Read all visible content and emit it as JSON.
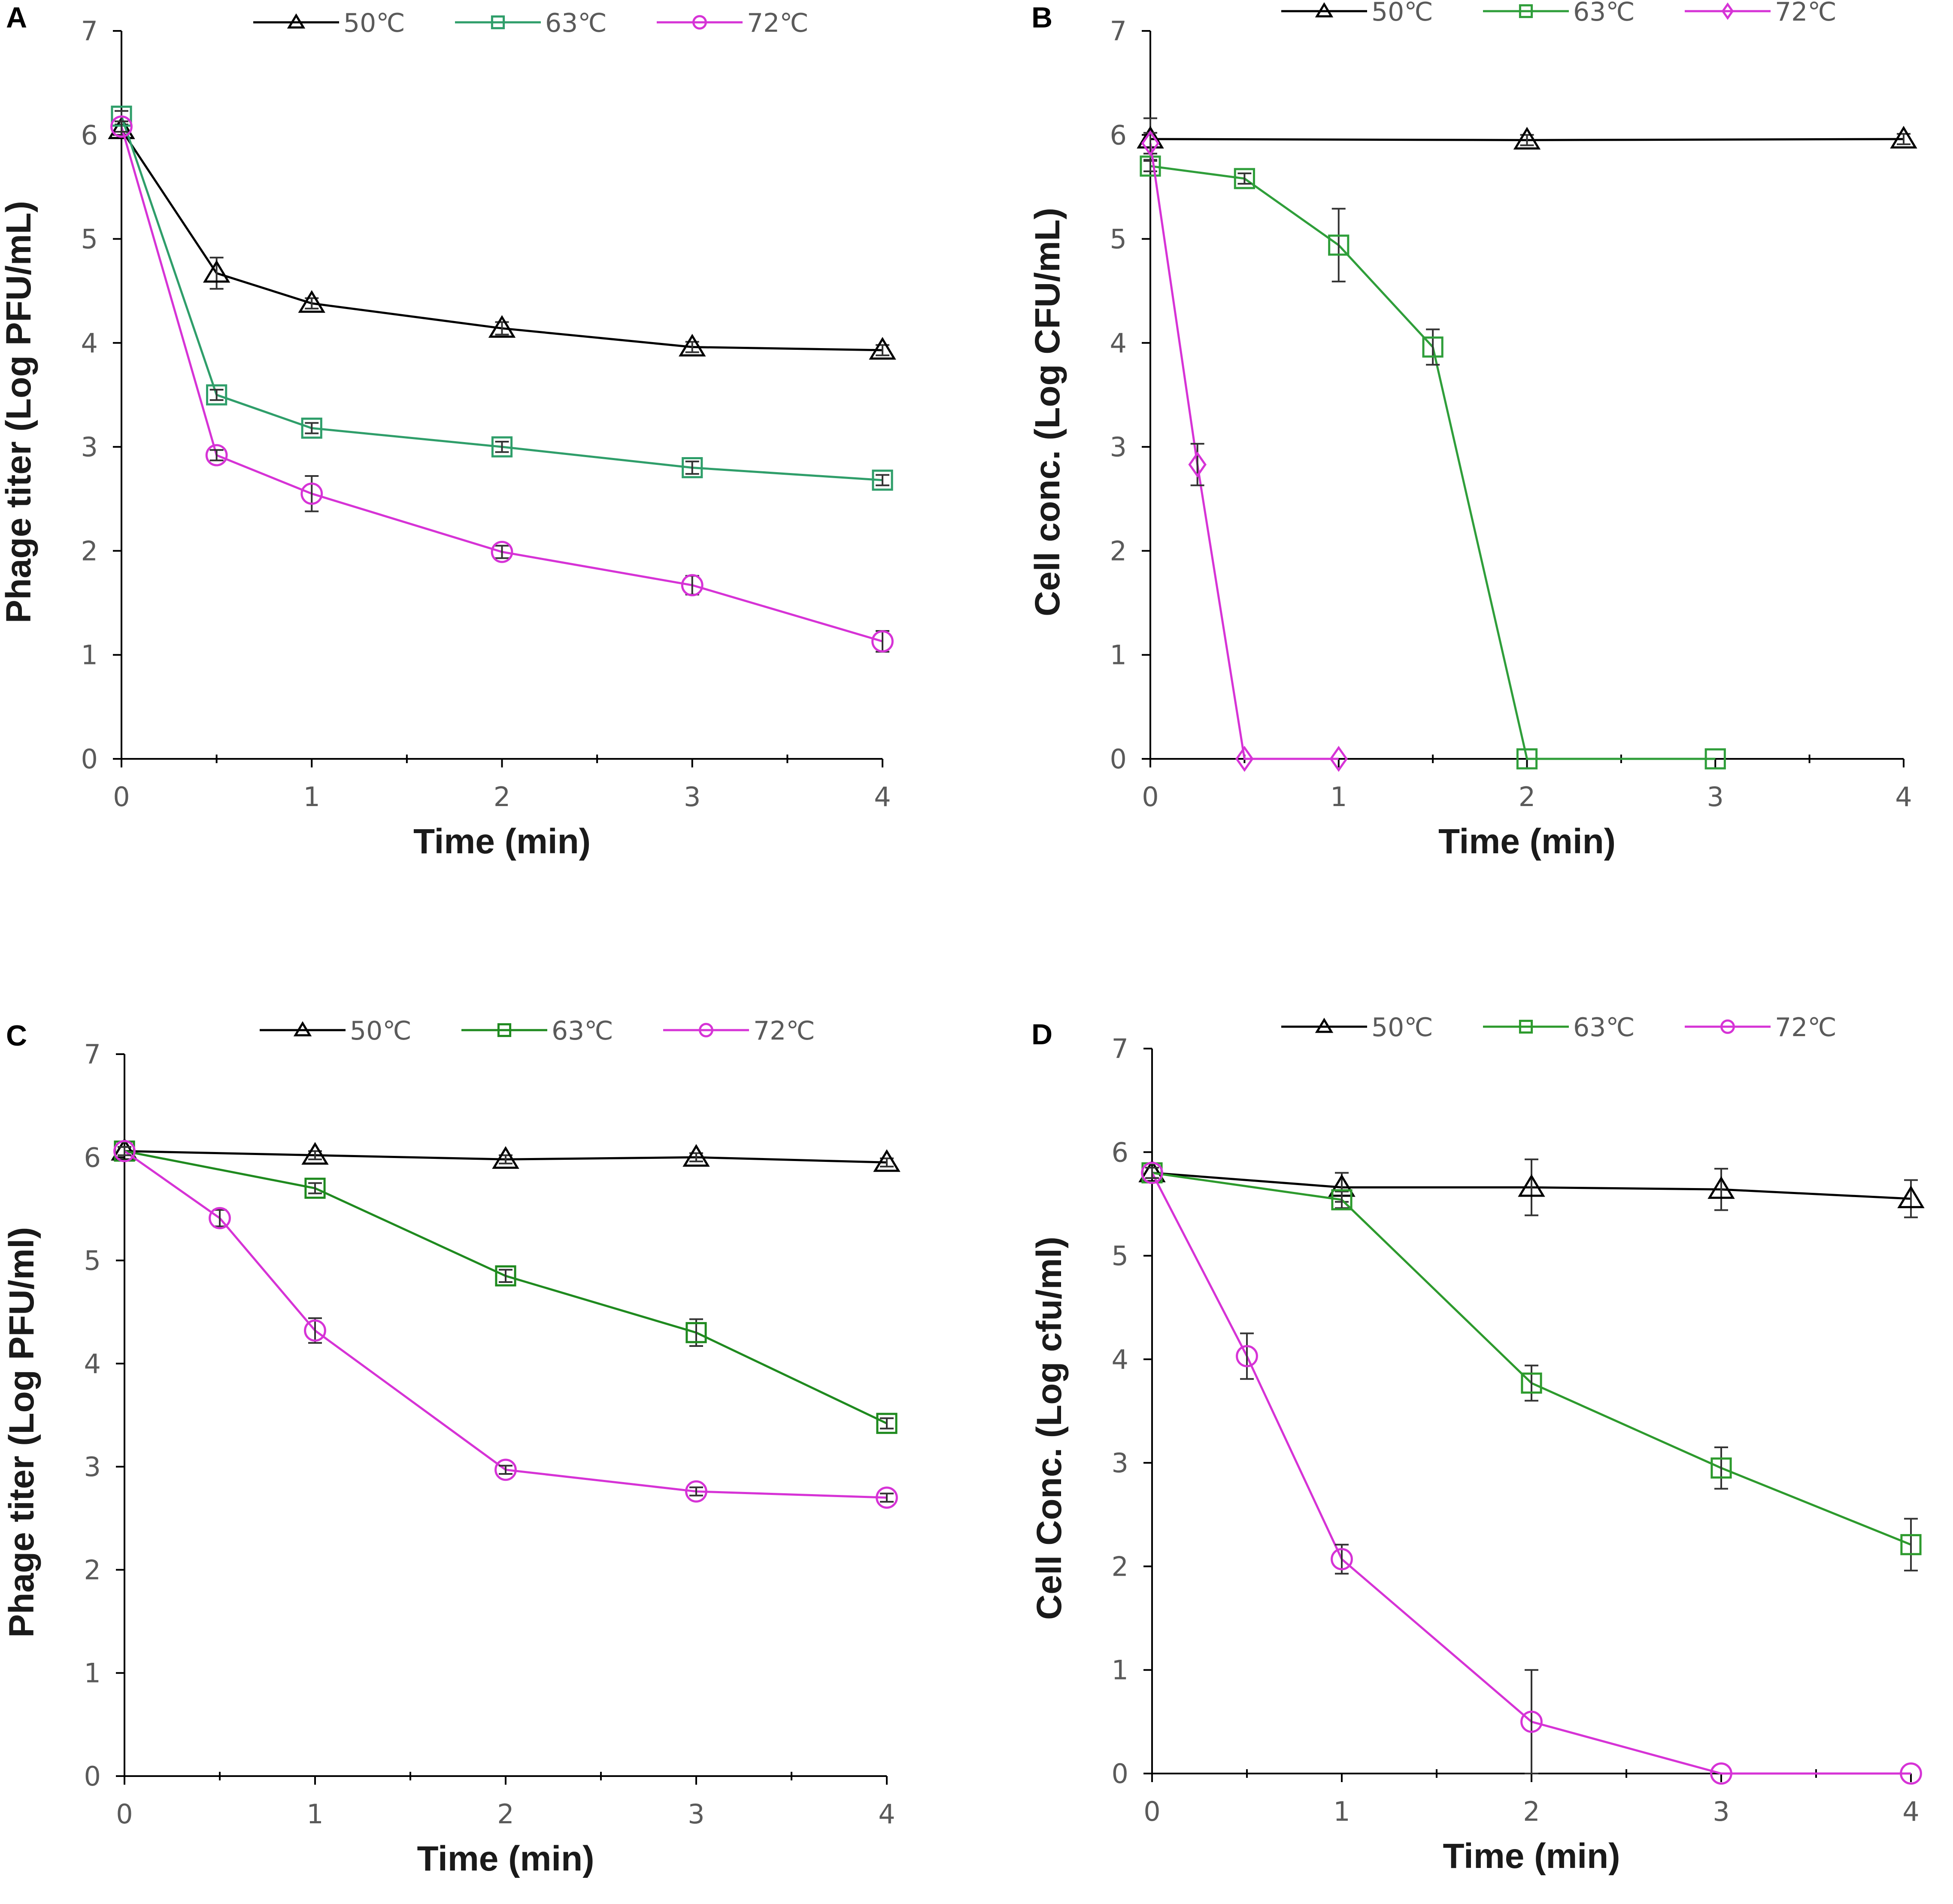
{
  "chart_data": [
    {
      "type": "line",
      "panel_label": "A",
      "xlabel": "Time (min)",
      "ylabel": "Phage titer (Log PFU/mL)",
      "xlim": [
        0,
        4
      ],
      "ylim": [
        0,
        7
      ],
      "x_ticks": [
        "0",
        "1",
        "2",
        "3",
        "4"
      ],
      "y_ticks": [
        "0",
        "1",
        "2",
        "3",
        "4",
        "5",
        "6",
        "7"
      ],
      "legend": [
        "50℃",
        "63℃",
        "72℃"
      ],
      "series": [
        {
          "name": "50℃",
          "color": "#000000",
          "marker": "triangle",
          "x": [
            0,
            0.5,
            1,
            2,
            3,
            4
          ],
          "y": [
            6.05,
            4.67,
            4.38,
            4.14,
            3.96,
            3.93
          ],
          "err": [
            0.05,
            0.15,
            0.05,
            0.06,
            0.05,
            0.05
          ]
        },
        {
          "name": "63℃",
          "color": "#2f9e6a",
          "marker": "square",
          "x": [
            0,
            0.5,
            1,
            2,
            3,
            4
          ],
          "y": [
            6.18,
            3.5,
            3.18,
            3.0,
            2.8,
            2.68
          ],
          "err": [
            0.05,
            0.05,
            0.05,
            0.05,
            0.06,
            0.05
          ]
        },
        {
          "name": "72℃",
          "color": "#d633d6",
          "marker": "circle",
          "x": [
            0,
            0.5,
            1,
            2,
            3,
            4
          ],
          "y": [
            6.08,
            2.92,
            2.55,
            1.99,
            1.67,
            1.13
          ],
          "err": [
            0.05,
            0.05,
            0.17,
            0.06,
            0.09,
            0.1
          ]
        }
      ]
    },
    {
      "type": "line",
      "panel_label": "B",
      "xlabel": "Time (min)",
      "ylabel": "Cell conc. (Log CFU/mL)",
      "xlim": [
        0,
        4
      ],
      "ylim": [
        0,
        7
      ],
      "x_ticks": [
        "0",
        "1",
        "2",
        "3",
        "4"
      ],
      "y_ticks": [
        "0",
        "1",
        "2",
        "3",
        "4",
        "5",
        "6",
        "7"
      ],
      "legend": [
        "50℃",
        "63℃",
        "72℃"
      ],
      "series": [
        {
          "name": "50℃",
          "color": "#000000",
          "marker": "triangle",
          "x": [
            0,
            2,
            4
          ],
          "y": [
            5.96,
            5.95,
            5.96
          ],
          "err": [
            0.2,
            0.05,
            0.05
          ]
        },
        {
          "name": "63℃",
          "color": "#2f9e3a",
          "marker": "square",
          "x": [
            0,
            0.5,
            1,
            1.5,
            2,
            3
          ],
          "y": [
            5.7,
            5.58,
            4.94,
            3.96,
            0,
            0
          ],
          "err": [
            0.05,
            0.05,
            0.35,
            0.17,
            0,
            0
          ]
        },
        {
          "name": "72℃",
          "color": "#d633d6",
          "marker": "diamond",
          "x": [
            0,
            0.25,
            0.5,
            1
          ],
          "y": [
            5.92,
            2.83,
            0,
            0
          ],
          "err": [
            0.1,
            0.2,
            0,
            0
          ]
        }
      ]
    },
    {
      "type": "line",
      "panel_label": "C",
      "xlabel": "Time (min)",
      "ylabel": "Phage titer (Log PFU/ml)",
      "xlim": [
        0,
        4
      ],
      "ylim": [
        0,
        7
      ],
      "x_ticks": [
        "0",
        "1",
        "2",
        "3",
        "4"
      ],
      "y_ticks": [
        "0",
        "1",
        "2",
        "3",
        "4",
        "5",
        "6",
        "7"
      ],
      "legend": [
        "50℃",
        "63℃",
        "72℃"
      ],
      "series": [
        {
          "name": "50℃",
          "color": "#000000",
          "marker": "triangle",
          "x": [
            0,
            1,
            2,
            3,
            4
          ],
          "y": [
            6.06,
            6.02,
            5.98,
            6.0,
            5.95
          ],
          "err": [
            0.04,
            0.04,
            0.04,
            0.04,
            0.04
          ]
        },
        {
          "name": "63℃",
          "color": "#1f8a1f",
          "marker": "square",
          "x": [
            0,
            1,
            2,
            3,
            4
          ],
          "y": [
            6.06,
            5.7,
            4.85,
            4.3,
            3.42
          ],
          "err": [
            0.04,
            0.05,
            0.06,
            0.13,
            0.05
          ]
        },
        {
          "name": "72℃",
          "color": "#d633d6",
          "marker": "circle",
          "x": [
            0,
            0.5,
            1,
            2,
            3,
            4
          ],
          "y": [
            6.06,
            5.41,
            4.32,
            2.97,
            2.76,
            2.7
          ],
          "err": [
            0.04,
            0.08,
            0.12,
            0.04,
            0.04,
            0.04
          ]
        }
      ]
    },
    {
      "type": "line",
      "panel_label": "D",
      "xlabel": "Time (min)",
      "ylabel": "Cell Conc. (Log cfu/ml)",
      "xlim": [
        0,
        4
      ],
      "ylim": [
        0,
        7
      ],
      "x_ticks": [
        "0",
        "1",
        "2",
        "3",
        "4"
      ],
      "y_ticks": [
        "0",
        "1",
        "2",
        "3",
        "4",
        "5",
        "6",
        "7"
      ],
      "legend": [
        "50℃",
        "63℃",
        "72℃"
      ],
      "series": [
        {
          "name": "50℃",
          "color": "#000000",
          "marker": "triangle",
          "x": [
            0,
            1,
            2,
            3,
            4
          ],
          "y": [
            5.8,
            5.66,
            5.66,
            5.64,
            5.55
          ],
          "err": [
            0.05,
            0.14,
            0.27,
            0.2,
            0.18
          ]
        },
        {
          "name": "63℃",
          "color": "#2d9a2d",
          "marker": "square",
          "x": [
            0,
            1,
            2,
            3,
            4
          ],
          "y": [
            5.8,
            5.54,
            3.77,
            2.95,
            2.21
          ],
          "err": [
            0.05,
            0.08,
            0.17,
            0.2,
            0.25
          ]
        },
        {
          "name": "72℃",
          "color": "#d633d6",
          "marker": "circle",
          "x": [
            0,
            0.5,
            1,
            2,
            3,
            4
          ],
          "y": [
            5.8,
            4.03,
            2.07,
            0.5,
            0,
            0
          ],
          "err": [
            0.05,
            0.22,
            0.14,
            0.5,
            0,
            0
          ]
        }
      ]
    }
  ]
}
